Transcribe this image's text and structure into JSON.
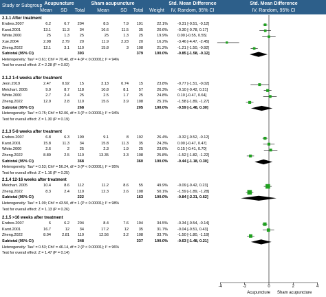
{
  "header": {
    "study_label": "Study or Subgroup",
    "acupuncture": "Acupuncture",
    "sham": "Sham acupuncture",
    "smd_title": "Std. Mean Difference",
    "smd_title_2": "Std. Mean Difference",
    "col_mean": "Mean",
    "col_sd": "SD",
    "col_total": "Total",
    "col_mean2": "Mean",
    "col_sd2": "SD",
    "col_total2": "Total",
    "col_weight": "Weight",
    "col_ci": "IV, Random, 95% CI",
    "col_ci_2": "IV, Random, 95% CI"
  },
  "groups": [
    {
      "title": "2.1.1 After treatment",
      "rows": [
        {
          "study": "Endres.2007",
          "m1": "6.2",
          "sd1": "6.7",
          "n1": "204",
          "m2": "8.5",
          "sd2": "7.9",
          "n2": "191",
          "w": "22.1%",
          "ci": "-0.31 [-0.51, -0.12]"
        },
        {
          "study": "Karst.2001",
          "m1": "13.1",
          "sd1": "11.3",
          "n1": "34",
          "m2": "16.6",
          "sd2": "11.5",
          "n2": "35",
          "w": "20.6%",
          "ci": "-0.30 [-0.78, 0.17]"
        },
        {
          "study": "White.2000",
          "m1": "25",
          "sd1": "1.3",
          "n1": "25",
          "m2": "25",
          "sd2": "1.3",
          "n2": "25",
          "w": "19.9%",
          "ci": "0.00 [-0.55, 0.55]"
        },
        {
          "study": "Xue.2004",
          "m1": "2.98",
          "sd1": "2.79",
          "n1": "20",
          "m2": "11.9",
          "sd2": "2.23",
          "n2": "20",
          "w": "16.2%",
          "ci": "-3.46 [-4.47, -2.45]"
        },
        {
          "study": "Zheng.2022",
          "m1": "12.1",
          "sd1": "3.1",
          "n1": "110",
          "m2": "15.8",
          "sd2": "3",
          "n2": "108",
          "w": "21.2%",
          "ci": "-1.21 [-1.50, -0.92]"
        }
      ],
      "subtotal": {
        "label": "Subtotal (95% CI)",
        "n1": "393",
        "n2": "379",
        "w": "100.0%",
        "ci": "-0.85 [-1.58, -0.12]"
      },
      "het": "Heterogeneity: Tau² = 0.61; Chi² = 70.40, df = 4 (P < 0.00001); I² = 94%",
      "test": "Test for overall effect: Z = 2.28 (P = 0.02)"
    },
    {
      "title": "2.1.2 1-4 weeks after treatment",
      "rows": [
        {
          "study": "Jeon.2019",
          "m1": "2.47",
          "sd1": "0.92",
          "n1": "15",
          "m2": "3.13",
          "sd2": "0.74",
          "n2": "15",
          "w": "23.8%",
          "ci": "-0.77 [-1.51, -0.02]"
        },
        {
          "study": "Melchart. 2005",
          "m1": "9.9",
          "sd1": "8.7",
          "n1": "118",
          "m2": "10.8",
          "sd2": "8.1",
          "n2": "57",
          "w": "26.3%",
          "ci": "-0.10 [-0.42, 0.21]"
        },
        {
          "study": "White.2000",
          "m1": "2.7",
          "sd1": "2.4",
          "n1": "25",
          "m2": "2.5",
          "sd2": "1.7",
          "n2": "25",
          "w": "24.8%",
          "ci": "0.10 [-0.47, 0.64]"
        },
        {
          "study": "Zheng.2022",
          "m1": "12.9",
          "sd1": "2.8",
          "n1": "110",
          "m2": "15.6",
          "sd2": "3.9",
          "n2": "108",
          "w": "25.1%",
          "ci": "-1.58 [-1.89, -1.27]"
        }
      ],
      "subtotal": {
        "label": "Subtotal (95% CI)",
        "n1": "268",
        "n2": "205",
        "w": "100.0%",
        "ci": "-0.59 [-1.48, 0.30]"
      },
      "het": "Heterogeneity: Tau² = 0.75; Chi² = 52.06, df = 3 (P < 0.00001); I² = 94%",
      "test": "Test for overall effect: Z = 1.30 (P = 0.19)"
    },
    {
      "title": "2.1.3 5-8 weeks after treatment",
      "rows": [
        {
          "study": "Endres.2007",
          "m1": "6.8",
          "sd1": "6.3",
          "n1": "199",
          "m2": "9.1",
          "sd2": "8",
          "n2": "192",
          "w": "26.4%",
          "ci": "-0.32 [-0.52, -0.12]"
        },
        {
          "study": "Karst.2001",
          "m1": "15.8",
          "sd1": "11.3",
          "n1": "34",
          "m2": "15.8",
          "sd2": "11.3",
          "n2": "35",
          "w": "24.3%",
          "ci": "0.00 [-0.47, 0.47]"
        },
        {
          "study": "White.2000",
          "m1": "2.6",
          "sd1": "2",
          "n1": "25",
          "m2": "2.3",
          "sd2": "1.9",
          "n2": "25",
          "w": "23.6%",
          "ci": "0.15 [-0.41, 0.70]"
        },
        {
          "study": "Zheng.2022",
          "m1": "8.89",
          "sd1": "2.5",
          "n1": "110",
          "m2": "13.35",
          "sd2": "3.3",
          "n2": "108",
          "w": "25.8%",
          "ci": "-1.52 [-1.82, -1.22]"
        }
      ],
      "subtotal": {
        "label": "Subtotal (95% CI)",
        "n1": "368",
        "n2": "360",
        "w": "100.0%",
        "ci": "-0.44 [-1.18, 0.30]"
      },
      "het": "Heterogeneity: Tau² = 0.53; Chi² = 56.24, df = 3 (P < 0.00001); I² = 95%",
      "test": "Test for overall effect: Z = 1.16 (P = 0.25)"
    },
    {
      "title": "2.1.4 12-16 weeks after treatment",
      "rows": [
        {
          "study": "Melchart. 2005",
          "m1": "10.4",
          "sd1": "8.6",
          "n1": "112",
          "m2": "11.2",
          "sd2": "8.6",
          "n2": "55",
          "w": "49.9%",
          "ci": "-0.09 [-0.42, 0.23]"
        },
        {
          "study": "Zheng.2022",
          "m1": "8.3",
          "sd1": "2.4",
          "n1": "110",
          "m2": "12.3",
          "sd2": "2.6",
          "n2": "108",
          "w": "50.1%",
          "ci": "-1.59 [-1.89, -1.28]"
        }
      ],
      "subtotal": {
        "label": "Subtotal (95% CI)",
        "n1": "222",
        "n2": "163",
        "w": "100.0%",
        "ci": "-0.84 [-2.31, 0.62]"
      },
      "het": "Heterogeneity: Tau² = 1.09; Chi² = 43.50, df = 1 (P < 0.00001); I² = 98%",
      "test": "Test for overall effect: Z = 1.13 (P = 0.26)"
    },
    {
      "title": "2.1.5 >16 weeks after treatment",
      "rows": [
        {
          "study": "Endres.2007",
          "m1": "6",
          "sd1": "6.2",
          "n1": "204",
          "m2": "8.4",
          "sd2": "7.6",
          "n2": "194",
          "w": "34.5%",
          "ci": "-0.34 [-0.54, -0.14]"
        },
        {
          "study": "Karst.2001",
          "m1": "16.7",
          "sd1": "12",
          "n1": "34",
          "m2": "17.2",
          "sd2": "12",
          "n2": "35",
          "w": "31.7%",
          "ci": "-0.04 [-0.51, 0.43]"
        },
        {
          "study": "Zheng.2022",
          "m1": "8.04",
          "sd1": "2.81",
          "n1": "110",
          "m2": "12.56",
          "sd2": "3.2",
          "n2": "108",
          "w": "33.7%",
          "ci": "-1.50 [-1.80, -1.19]"
        }
      ],
      "subtotal": {
        "label": "Subtotal (95% CI)",
        "n1": "348",
        "n2": "337",
        "w": "100.0%",
        "ci": "-0.63 [-1.48, 0.21]"
      },
      "het": "Heterogeneity: Tau² = 0.53; Chi² = 46.14, df = 2 (P < 0.00001); I² = 96%",
      "test": "Test for overall effect: Z = 1.47 (P = 0.14)"
    }
  ],
  "axis": {
    "ticks": [
      "-4",
      "-2",
      "0",
      "2",
      "4"
    ],
    "left_label": "Acupuncture",
    "right_label": "Sham acupuncture"
  },
  "colors": {
    "header_bg": "#2d5f8a",
    "study_marker": "#1fa01f",
    "diamond": "#000000"
  },
  "chart_data": {
    "type": "forest",
    "xlim": [
      -4,
      4
    ],
    "ticks": [
      -4,
      -2,
      0,
      2,
      4
    ],
    "left_label": "Acupuncture",
    "right_label": "Sham acupuncture",
    "groups": [
      {
        "name": "2.1.1 After treatment",
        "studies": [
          {
            "study": "Endres.2007",
            "est": -0.31,
            "lo": -0.51,
            "hi": -0.12,
            "weight": 22.1
          },
          {
            "study": "Karst.2001",
            "est": -0.3,
            "lo": -0.78,
            "hi": 0.17,
            "weight": 20.6
          },
          {
            "study": "White.2000",
            "est": 0.0,
            "lo": -0.55,
            "hi": 0.55,
            "weight": 19.9
          },
          {
            "study": "Xue.2004",
            "est": -3.46,
            "lo": -4.47,
            "hi": -2.45,
            "weight": 16.2
          },
          {
            "study": "Zheng.2022",
            "est": -1.21,
            "lo": -1.5,
            "hi": -0.92,
            "weight": 21.2
          }
        ],
        "subtotal": {
          "est": -0.85,
          "lo": -1.58,
          "hi": -0.12
        }
      },
      {
        "name": "2.1.2 1-4 weeks after treatment",
        "studies": [
          {
            "study": "Jeon.2019",
            "est": -0.77,
            "lo": -1.51,
            "hi": -0.02,
            "weight": 23.8
          },
          {
            "study": "Melchart. 2005",
            "est": -0.1,
            "lo": -0.42,
            "hi": 0.21,
            "weight": 26.3
          },
          {
            "study": "White.2000",
            "est": 0.1,
            "lo": -0.47,
            "hi": 0.64,
            "weight": 24.8
          },
          {
            "study": "Zheng.2022",
            "est": -1.58,
            "lo": -1.89,
            "hi": -1.27,
            "weight": 25.1
          }
        ],
        "subtotal": {
          "est": -0.59,
          "lo": -1.48,
          "hi": 0.3
        }
      },
      {
        "name": "2.1.3 5-8 weeks after treatment",
        "studies": [
          {
            "study": "Endres.2007",
            "est": -0.32,
            "lo": -0.52,
            "hi": -0.12,
            "weight": 26.4
          },
          {
            "study": "Karst.2001",
            "est": 0.0,
            "lo": -0.47,
            "hi": 0.47,
            "weight": 24.3
          },
          {
            "study": "White.2000",
            "est": 0.15,
            "lo": -0.41,
            "hi": 0.7,
            "weight": 23.6
          },
          {
            "study": "Zheng.2022",
            "est": -1.52,
            "lo": -1.82,
            "hi": -1.22,
            "weight": 25.8
          }
        ],
        "subtotal": {
          "est": -0.44,
          "lo": -1.18,
          "hi": 0.3
        }
      },
      {
        "name": "2.1.4 12-16 weeks after treatment",
        "studies": [
          {
            "study": "Melchart. 2005",
            "est": -0.09,
            "lo": -0.42,
            "hi": 0.23,
            "weight": 49.9
          },
          {
            "study": "Zheng.2022",
            "est": -1.59,
            "lo": -1.89,
            "hi": -1.28,
            "weight": 50.1
          }
        ],
        "subtotal": {
          "est": -0.84,
          "lo": -2.31,
          "hi": 0.62
        }
      },
      {
        "name": "2.1.5 >16 weeks after treatment",
        "studies": [
          {
            "study": "Endres.2007",
            "est": -0.34,
            "lo": -0.54,
            "hi": -0.14,
            "weight": 34.5
          },
          {
            "study": "Karst.2001",
            "est": -0.04,
            "lo": -0.51,
            "hi": 0.43,
            "weight": 31.7
          },
          {
            "study": "Zheng.2022",
            "est": -1.5,
            "lo": -1.8,
            "hi": -1.19,
            "weight": 33.7
          }
        ],
        "subtotal": {
          "est": -0.63,
          "lo": -1.48,
          "hi": 0.21
        }
      }
    ]
  }
}
